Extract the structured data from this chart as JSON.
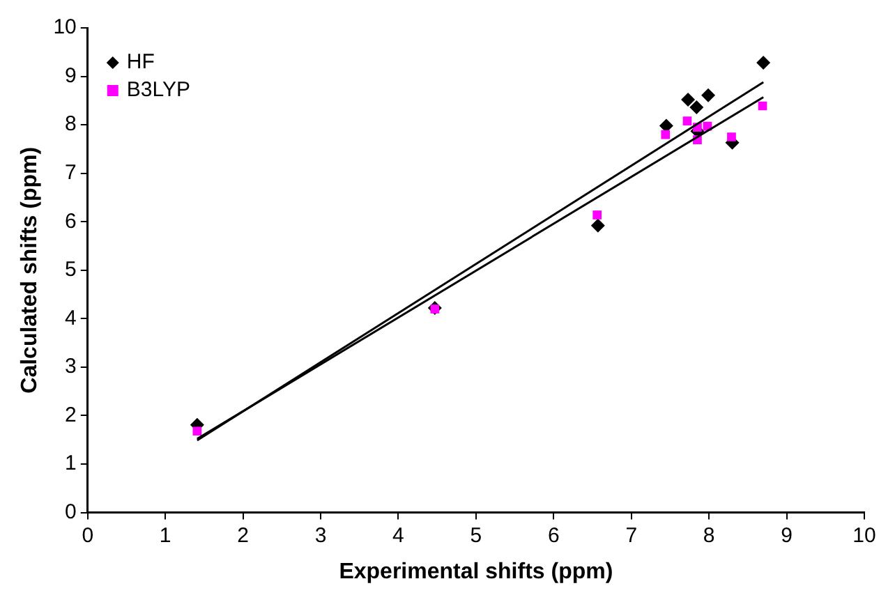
{
  "chart_data": {
    "type": "scatter",
    "xlabel": "Experimental shifts (ppm)",
    "ylabel": "Calculated shifts (ppm)",
    "xlim": [
      0,
      10
    ],
    "ylim": [
      0,
      10
    ],
    "xticks": [
      0,
      1,
      2,
      3,
      4,
      5,
      6,
      7,
      8,
      9,
      10
    ],
    "yticks": [
      0,
      1,
      2,
      3,
      4,
      5,
      6,
      7,
      8,
      9,
      10
    ],
    "grid": false,
    "legend": "top left",
    "series": [
      {
        "name": "HF",
        "color": "#000000",
        "marker": "diamond",
        "x": [
          1.41,
          4.47,
          6.57,
          7.45,
          7.73,
          7.84,
          7.85,
          7.99,
          8.3,
          8.7
        ],
        "values": [
          1.81,
          4.22,
          5.92,
          7.98,
          8.52,
          8.36,
          7.87,
          8.61,
          7.63,
          9.28
        ]
      },
      {
        "name": "B3LYP",
        "color": "#ff00ff",
        "marker": "square",
        "x": [
          1.41,
          4.47,
          6.56,
          7.44,
          7.72,
          7.85,
          7.85,
          7.98,
          8.29,
          8.69
        ],
        "values": [
          1.68,
          4.2,
          6.14,
          7.8,
          8.08,
          7.95,
          7.69,
          7.97,
          7.75,
          8.39
        ]
      },
      {
        "type": "line",
        "color": "#000000",
        "marker": "none",
        "x": [
          1.41,
          8.7
        ],
        "values": [
          1.49,
          8.88
        ]
      },
      {
        "type": "line",
        "color": "#000000",
        "marker": "none",
        "x": [
          1.41,
          8.7
        ],
        "values": [
          1.52,
          8.57
        ]
      }
    ]
  }
}
